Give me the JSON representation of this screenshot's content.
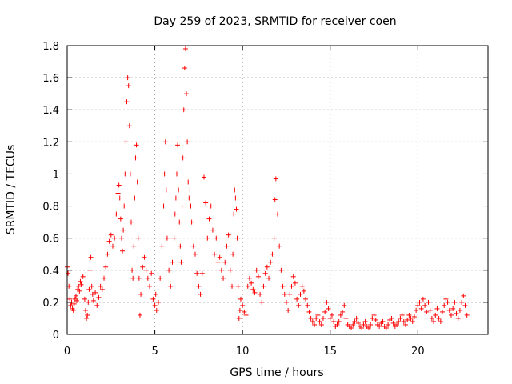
{
  "chart_data": {
    "type": "scatter",
    "title": "Day 259 of 2023, SRMTID for receiver coen",
    "xlabel": "GPS time / hours",
    "ylabel": "SRMTID / TECUs",
    "xlim": [
      0,
      24
    ],
    "ylim": [
      0,
      1.8
    ],
    "xticks": [
      0,
      5,
      10,
      15,
      20
    ],
    "xtick_labels": [
      "0",
      "5",
      "10",
      "15",
      "20"
    ],
    "yticks": [
      0,
      0.2,
      0.4,
      0.6,
      0.8,
      1.0,
      1.2,
      1.4,
      1.6,
      1.8
    ],
    "ytick_labels": [
      "0",
      "0.2",
      "0.4",
      "0.6",
      "0.8",
      "1",
      "1.2",
      "1.4",
      "1.6",
      "1.8"
    ],
    "grid": true,
    "marker": "+",
    "marker_color": "#ff0000",
    "series": [
      {
        "name": "SRMTID",
        "points": [
          [
            0.0,
            0.42
          ],
          [
            0.05,
            0.38
          ],
          [
            0.1,
            0.3
          ],
          [
            0.15,
            0.22
          ],
          [
            0.2,
            0.18
          ],
          [
            0.25,
            0.2
          ],
          [
            0.3,
            0.16
          ],
          [
            0.35,
            0.15
          ],
          [
            0.4,
            0.19
          ],
          [
            0.45,
            0.22
          ],
          [
            0.5,
            0.24
          ],
          [
            0.55,
            0.21
          ],
          [
            0.6,
            0.28
          ],
          [
            0.65,
            0.3
          ],
          [
            0.7,
            0.27
          ],
          [
            0.75,
            0.33
          ],
          [
            0.8,
            0.31
          ],
          [
            0.9,
            0.36
          ],
          [
            1.0,
            0.22
          ],
          [
            1.05,
            0.15
          ],
          [
            1.1,
            0.1
          ],
          [
            1.15,
            0.12
          ],
          [
            1.2,
            0.2
          ],
          [
            1.25,
            0.28
          ],
          [
            1.3,
            0.4
          ],
          [
            1.35,
            0.48
          ],
          [
            1.4,
            0.3
          ],
          [
            1.45,
            0.25
          ],
          [
            1.5,
            0.21
          ],
          [
            1.6,
            0.26
          ],
          [
            1.7,
            0.18
          ],
          [
            1.8,
            0.23
          ],
          [
            1.9,
            0.3
          ],
          [
            2.0,
            0.28
          ],
          [
            2.1,
            0.35
          ],
          [
            2.2,
            0.42
          ],
          [
            2.3,
            0.5
          ],
          [
            2.4,
            0.58
          ],
          [
            2.5,
            0.62
          ],
          [
            2.6,
            0.55
          ],
          [
            2.7,
            0.6
          ],
          [
            2.8,
            0.75
          ],
          [
            2.9,
            0.88
          ],
          [
            2.95,
            0.93
          ],
          [
            3.0,
            0.85
          ],
          [
            3.05,
            0.72
          ],
          [
            3.1,
            0.6
          ],
          [
            3.15,
            0.52
          ],
          [
            3.2,
            0.65
          ],
          [
            3.25,
            0.8
          ],
          [
            3.3,
            1.0
          ],
          [
            3.35,
            1.2
          ],
          [
            3.4,
            1.45
          ],
          [
            3.45,
            1.6
          ],
          [
            3.5,
            1.55
          ],
          [
            3.55,
            1.3
          ],
          [
            3.6,
            1.0
          ],
          [
            3.65,
            0.7
          ],
          [
            3.7,
            0.4
          ],
          [
            3.75,
            0.35
          ],
          [
            3.8,
            0.55
          ],
          [
            3.85,
            0.85
          ],
          [
            3.9,
            1.1
          ],
          [
            3.95,
            1.18
          ],
          [
            4.0,
            0.95
          ],
          [
            4.05,
            0.6
          ],
          [
            4.1,
            0.35
          ],
          [
            4.15,
            0.12
          ],
          [
            4.2,
            0.25
          ],
          [
            4.3,
            0.42
          ],
          [
            4.4,
            0.48
          ],
          [
            4.5,
            0.4
          ],
          [
            4.6,
            0.35
          ],
          [
            4.7,
            0.3
          ],
          [
            4.8,
            0.38
          ],
          [
            4.9,
            0.22
          ],
          [
            5.0,
            0.18
          ],
          [
            5.05,
            0.25
          ],
          [
            5.1,
            0.15
          ],
          [
            5.2,
            0.2
          ],
          [
            5.3,
            0.35
          ],
          [
            5.4,
            0.55
          ],
          [
            5.5,
            0.8
          ],
          [
            5.55,
            1.0
          ],
          [
            5.6,
            1.2
          ],
          [
            5.65,
            0.9
          ],
          [
            5.7,
            0.6
          ],
          [
            5.8,
            0.4
          ],
          [
            5.9,
            0.3
          ],
          [
            6.0,
            0.45
          ],
          [
            6.1,
            0.6
          ],
          [
            6.15,
            0.75
          ],
          [
            6.2,
            0.85
          ],
          [
            6.25,
            1.0
          ],
          [
            6.3,
            1.18
          ],
          [
            6.35,
            0.9
          ],
          [
            6.4,
            0.7
          ],
          [
            6.45,
            0.55
          ],
          [
            6.5,
            0.45
          ],
          [
            6.55,
            0.8
          ],
          [
            6.6,
            1.1
          ],
          [
            6.65,
            1.4
          ],
          [
            6.7,
            1.66
          ],
          [
            6.75,
            1.78
          ],
          [
            6.8,
            1.5
          ],
          [
            6.85,
            1.2
          ],
          [
            6.9,
            0.95
          ],
          [
            6.95,
            0.85
          ],
          [
            7.0,
            0.9
          ],
          [
            7.05,
            0.8
          ],
          [
            7.1,
            0.7
          ],
          [
            7.2,
            0.55
          ],
          [
            7.3,
            0.5
          ],
          [
            7.4,
            0.38
          ],
          [
            7.5,
            0.3
          ],
          [
            7.6,
            0.25
          ],
          [
            7.7,
            0.38
          ],
          [
            7.8,
            0.98
          ],
          [
            7.9,
            0.82
          ],
          [
            8.0,
            0.6
          ],
          [
            8.1,
            0.72
          ],
          [
            8.2,
            0.8
          ],
          [
            8.3,
            0.65
          ],
          [
            8.4,
            0.5
          ],
          [
            8.5,
            0.6
          ],
          [
            8.6,
            0.45
          ],
          [
            8.7,
            0.48
          ],
          [
            8.8,
            0.4
          ],
          [
            8.9,
            0.35
          ],
          [
            9.0,
            0.45
          ],
          [
            9.1,
            0.55
          ],
          [
            9.2,
            0.62
          ],
          [
            9.3,
            0.4
          ],
          [
            9.4,
            0.3
          ],
          [
            9.45,
            0.5
          ],
          [
            9.5,
            0.75
          ],
          [
            9.55,
            0.9
          ],
          [
            9.6,
            0.85
          ],
          [
            9.65,
            0.78
          ],
          [
            9.7,
            0.6
          ],
          [
            9.75,
            0.3
          ],
          [
            9.8,
            0.1
          ],
          [
            9.85,
            0.15
          ],
          [
            9.9,
            0.22
          ],
          [
            10.0,
            0.18
          ],
          [
            10.1,
            0.14
          ],
          [
            10.2,
            0.12
          ],
          [
            10.3,
            0.3
          ],
          [
            10.4,
            0.35
          ],
          [
            10.5,
            0.32
          ],
          [
            10.6,
            0.28
          ],
          [
            10.7,
            0.26
          ],
          [
            10.8,
            0.4
          ],
          [
            10.9,
            0.36
          ],
          [
            11.0,
            0.25
          ],
          [
            11.1,
            0.2
          ],
          [
            11.2,
            0.3
          ],
          [
            11.3,
            0.38
          ],
          [
            11.4,
            0.42
          ],
          [
            11.5,
            0.35
          ],
          [
            11.6,
            0.45
          ],
          [
            11.7,
            0.5
          ],
          [
            11.8,
            0.6
          ],
          [
            11.85,
            0.84
          ],
          [
            11.9,
            0.97
          ],
          [
            12.0,
            0.75
          ],
          [
            12.1,
            0.55
          ],
          [
            12.2,
            0.4
          ],
          [
            12.3,
            0.3
          ],
          [
            12.4,
            0.25
          ],
          [
            12.5,
            0.2
          ],
          [
            12.6,
            0.15
          ],
          [
            12.7,
            0.25
          ],
          [
            12.8,
            0.3
          ],
          [
            12.9,
            0.36
          ],
          [
            13.0,
            0.32
          ],
          [
            13.1,
            0.22
          ],
          [
            13.2,
            0.18
          ],
          [
            13.3,
            0.25
          ],
          [
            13.4,
            0.3
          ],
          [
            13.5,
            0.27
          ],
          [
            13.6,
            0.22
          ],
          [
            13.7,
            0.18
          ],
          [
            13.8,
            0.14
          ],
          [
            13.9,
            0.1
          ],
          [
            14.0,
            0.08
          ],
          [
            14.1,
            0.06
          ],
          [
            14.2,
            0.1
          ],
          [
            14.3,
            0.12
          ],
          [
            14.4,
            0.08
          ],
          [
            14.5,
            0.06
          ],
          [
            14.6,
            0.1
          ],
          [
            14.7,
            0.14
          ],
          [
            14.8,
            0.2
          ],
          [
            14.9,
            0.16
          ],
          [
            15.0,
            0.1
          ],
          [
            15.1,
            0.12
          ],
          [
            15.2,
            0.08
          ],
          [
            15.3,
            0.05
          ],
          [
            15.4,
            0.06
          ],
          [
            15.5,
            0.08
          ],
          [
            15.6,
            0.12
          ],
          [
            15.7,
            0.14
          ],
          [
            15.8,
            0.18
          ],
          [
            15.9,
            0.1
          ],
          [
            16.0,
            0.06
          ],
          [
            16.1,
            0.05
          ],
          [
            16.2,
            0.04
          ],
          [
            16.3,
            0.06
          ],
          [
            16.4,
            0.08
          ],
          [
            16.5,
            0.1
          ],
          [
            16.6,
            0.07
          ],
          [
            16.7,
            0.05
          ],
          [
            16.8,
            0.04
          ],
          [
            16.9,
            0.06
          ],
          [
            17.0,
            0.08
          ],
          [
            17.1,
            0.05
          ],
          [
            17.2,
            0.04
          ],
          [
            17.3,
            0.06
          ],
          [
            17.4,
            0.1
          ],
          [
            17.5,
            0.12
          ],
          [
            17.6,
            0.09
          ],
          [
            17.7,
            0.06
          ],
          [
            17.8,
            0.05
          ],
          [
            17.9,
            0.07
          ],
          [
            18.0,
            0.08
          ],
          [
            18.1,
            0.05
          ],
          [
            18.2,
            0.04
          ],
          [
            18.3,
            0.06
          ],
          [
            18.4,
            0.09
          ],
          [
            18.5,
            0.1
          ],
          [
            18.6,
            0.07
          ],
          [
            18.7,
            0.05
          ],
          [
            18.8,
            0.06
          ],
          [
            18.9,
            0.08
          ],
          [
            19.0,
            0.1
          ],
          [
            19.1,
            0.12
          ],
          [
            19.2,
            0.08
          ],
          [
            19.3,
            0.06
          ],
          [
            19.4,
            0.09
          ],
          [
            19.5,
            0.12
          ],
          [
            19.6,
            0.1
          ],
          [
            19.7,
            0.08
          ],
          [
            19.8,
            0.11
          ],
          [
            19.9,
            0.15
          ],
          [
            20.0,
            0.18
          ],
          [
            20.1,
            0.2
          ],
          [
            20.2,
            0.16
          ],
          [
            20.3,
            0.22
          ],
          [
            20.4,
            0.18
          ],
          [
            20.5,
            0.14
          ],
          [
            20.6,
            0.2
          ],
          [
            20.7,
            0.15
          ],
          [
            20.8,
            0.1
          ],
          [
            20.9,
            0.08
          ],
          [
            21.0,
            0.12
          ],
          [
            21.1,
            0.16
          ],
          [
            21.2,
            0.1
          ],
          [
            21.3,
            0.08
          ],
          [
            21.4,
            0.14
          ],
          [
            21.5,
            0.18
          ],
          [
            21.6,
            0.22
          ],
          [
            21.7,
            0.2
          ],
          [
            21.8,
            0.15
          ],
          [
            21.9,
            0.12
          ],
          [
            22.0,
            0.16
          ],
          [
            22.1,
            0.2
          ],
          [
            22.2,
            0.13
          ],
          [
            22.3,
            0.1
          ],
          [
            22.4,
            0.15
          ],
          [
            22.5,
            0.2
          ],
          [
            22.6,
            0.24
          ],
          [
            22.7,
            0.18
          ],
          [
            22.8,
            0.12
          ]
        ]
      }
    ]
  }
}
